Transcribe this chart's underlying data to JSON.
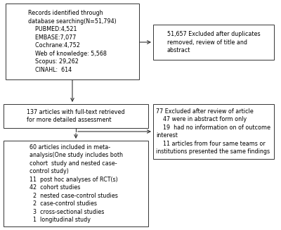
{
  "box1_lines": [
    "Records identified through",
    "database searching(N=51,794)",
    "    PUBMED:4,521",
    "    EMBASE:7,077",
    "    Cochrane:4,752",
    "    Web of knowledge: 5,568",
    "    Scopus: 29,262",
    "    CINAHL:  614"
  ],
  "box2_lines": [
    "51,657 Excluded after duplicates",
    "removed, review of title and",
    "abstract"
  ],
  "box3_lines": [
    "137 articles with full-text retrieved",
    "for more detailed assessment"
  ],
  "box4_lines": [
    "77 Excluded after review of article",
    "    47 were in abstract form only",
    "    19  had no information on of outcome",
    "interest",
    "    11 articles from four same teams or",
    "institutions presented the same findings"
  ],
  "box5_lines": [
    "60 articles included in meta-",
    "analysis(One study includes both",
    "cohort  study and nested case-",
    "control study)",
    "11  post hoc analyses of RCT(s)",
    "42  cohort studies",
    "  2  nested case-control studies",
    "  2  case-control studies",
    "  3  cross-sectional studies",
    "  1  longitudinal study"
  ],
  "bg_color": "#ffffff",
  "box_edge_color": "#333333",
  "text_color": "#000000",
  "font_size": 5.8,
  "line_color": "#333333",
  "b1": [
    8,
    5,
    190,
    108
  ],
  "b2": [
    218,
    35,
    172,
    50
  ],
  "b3": [
    5,
    148,
    206,
    34
  ],
  "b4": [
    218,
    148,
    172,
    78
  ],
  "b5": [
    5,
    200,
    206,
    122
  ]
}
